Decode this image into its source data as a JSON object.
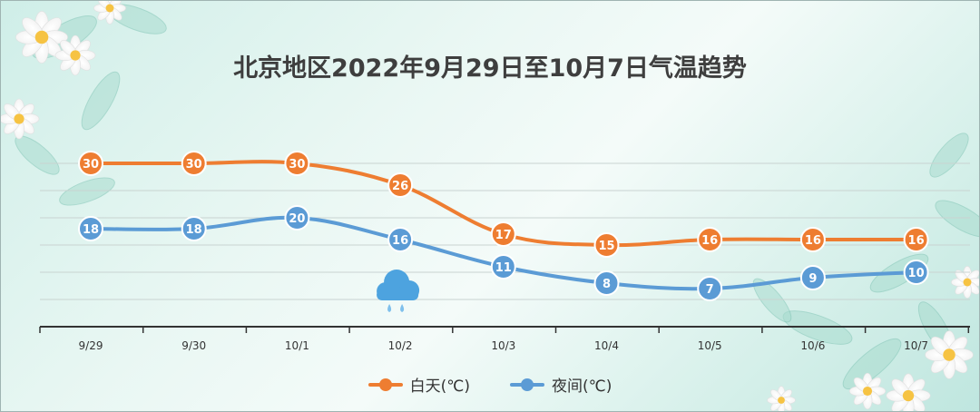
{
  "chart_data": {
    "type": "line",
    "title": "北京地区2022年9月29日至10月7日气温趋势",
    "categories": [
      "9/29",
      "9/30",
      "10/1",
      "10/2",
      "10/3",
      "10/4",
      "10/5",
      "10/6",
      "10/7"
    ],
    "series": [
      {
        "name": "白天(℃)",
        "color": "#ee7d31",
        "values": [
          30,
          30,
          30,
          26,
          17,
          15,
          16,
          16,
          16
        ]
      },
      {
        "name": "夜间(℃)",
        "color": "#5b9bd5",
        "values": [
          18,
          18,
          20,
          16,
          11,
          8,
          7,
          9,
          10
        ]
      }
    ],
    "ylim": [
      0,
      40
    ],
    "grid": true,
    "legend": "bottom",
    "annotations": [
      {
        "icon": "rain-cloud-icon",
        "category": "10/2"
      }
    ]
  }
}
